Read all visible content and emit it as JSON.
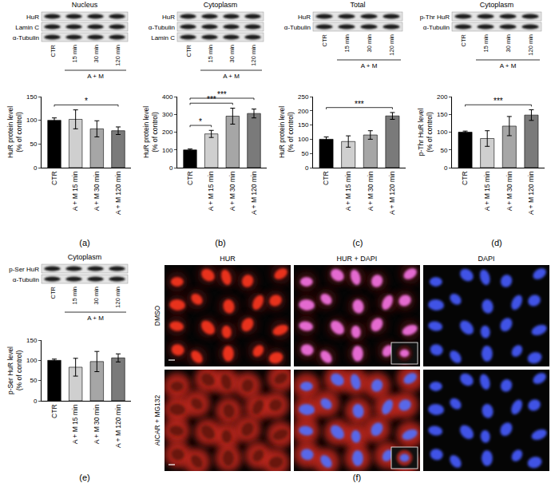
{
  "panel_labels": [
    "(a)",
    "(b)",
    "(c)",
    "(d)",
    "(e)",
    "(f)"
  ],
  "blots": [
    {
      "title": "Nucleus",
      "rows": [
        "HuR",
        "Lamin C",
        "α-Tubulin"
      ],
      "lanes": [
        "CTR",
        "15 min",
        "30 min",
        "120 min"
      ],
      "group": "A + M"
    },
    {
      "title": "Cytoplasm",
      "rows": [
        "HuR",
        "α-Tubulin",
        "Lamin C"
      ],
      "lanes": [
        "CTR",
        "15 min",
        "30 min",
        "120 min"
      ],
      "group": "A + M"
    },
    {
      "title": "Total",
      "rows": [
        "HuR",
        "α-Tubulin"
      ],
      "lanes": [
        "CTR",
        "15 min",
        "30 min",
        "120 min"
      ],
      "group": "A + M"
    },
    {
      "title": "Cytoplasm",
      "rows": [
        "p-Thr HuR",
        "α-Tubulin"
      ],
      "lanes": [
        "CTR",
        "15 min",
        "30 min",
        "120 min"
      ],
      "group": "A + M"
    },
    {
      "title": "Cytoplasm",
      "rows": [
        "p-Ser HuR",
        "α-Tubulin"
      ],
      "lanes": [
        "CTR",
        "15 min",
        "30 min",
        "120 min"
      ],
      "group": "A + M"
    }
  ],
  "chart_data": [
    {
      "type": "bar",
      "categories": [
        "CTR",
        "A + M 15 min",
        "A + M 30 min",
        "A + M 120 min"
      ],
      "values": [
        100,
        102,
        82,
        78
      ],
      "error": [
        5,
        20,
        17,
        8
      ],
      "colors": [
        "#000000",
        "#cfcfcf",
        "#a6a6a6",
        "#7a7a7a"
      ],
      "ylim": [
        0,
        150
      ],
      "yticks": [
        0,
        50,
        100,
        150
      ],
      "y_label": [
        "HuR protein level",
        "(% of control)"
      ],
      "significance": [
        {
          "from": "CTR",
          "to": "A + M 120 min",
          "text": "*"
        }
      ]
    },
    {
      "type": "bar",
      "categories": [
        "CTR",
        "A + M 15 min",
        "A + M 30 min",
        "A + M 120 min"
      ],
      "values": [
        100,
        190,
        290,
        305
      ],
      "error": [
        5,
        20,
        45,
        25
      ],
      "colors": [
        "#000000",
        "#cfcfcf",
        "#a6a6a6",
        "#7a7a7a"
      ],
      "ylim": [
        0,
        400
      ],
      "yticks": [
        0,
        100,
        200,
        300,
        400
      ],
      "y_label": [
        "HuR protein level",
        "(% of control)"
      ],
      "significance": [
        {
          "from": "CTR",
          "to": "A + M 15 min",
          "text": "*"
        },
        {
          "from": "CTR",
          "to": "A + M 30 min",
          "text": "***"
        },
        {
          "from": "CTR",
          "to": "A + M 120 min",
          "text": "***"
        }
      ]
    },
    {
      "type": "bar",
      "categories": [
        "CTR",
        "A + M 15 min",
        "A + M 30 min",
        "A + M 120 min"
      ],
      "values": [
        100,
        92,
        115,
        182
      ],
      "error": [
        8,
        20,
        15,
        12
      ],
      "colors": [
        "#000000",
        "#cfcfcf",
        "#a6a6a6",
        "#7a7a7a"
      ],
      "ylim": [
        0,
        250
      ],
      "yticks": [
        0,
        50,
        100,
        150,
        200,
        250
      ],
      "y_label": [
        "HuR protein level",
        "(% of control)"
      ],
      "significance": [
        {
          "from": "CTR",
          "to": "A + M 120 min",
          "text": "***"
        }
      ]
    },
    {
      "type": "bar",
      "categories": [
        "CTR",
        "A + M 15 min",
        "A + M 30 min",
        "A + M 120 min"
      ],
      "values": [
        100,
        82,
        117,
        148
      ],
      "error": [
        3,
        22,
        27,
        15
      ],
      "colors": [
        "#000000",
        "#cfcfcf",
        "#a6a6a6",
        "#7a7a7a"
      ],
      "ylim": [
        0,
        200
      ],
      "yticks": [
        0,
        50,
        100,
        150,
        200
      ],
      "y_label": [
        "p-Thr HuR level",
        "(% of control)"
      ],
      "significance": [
        {
          "from": "CTR",
          "to": "A + M 120 min",
          "text": "***"
        }
      ]
    },
    {
      "type": "bar",
      "categories": [
        "CTR",
        "A + M 15 min",
        "A + M 30 min",
        "A + M 120 min"
      ],
      "values": [
        100,
        83,
        97,
        106
      ],
      "error": [
        3,
        22,
        25,
        10
      ],
      "colors": [
        "#000000",
        "#cfcfcf",
        "#a6a6a6",
        "#7a7a7a"
      ],
      "ylim": [
        0,
        150
      ],
      "yticks": [
        0,
        50,
        100,
        150
      ],
      "y_label": [
        "p-Ser HuR level",
        "(% of control)"
      ],
      "significance": []
    }
  ],
  "microscopy": {
    "columns": [
      "HUR",
      "HUR + DAPI",
      "DAPI"
    ],
    "rows": [
      "DMSO",
      "AICAR + MG132"
    ]
  }
}
